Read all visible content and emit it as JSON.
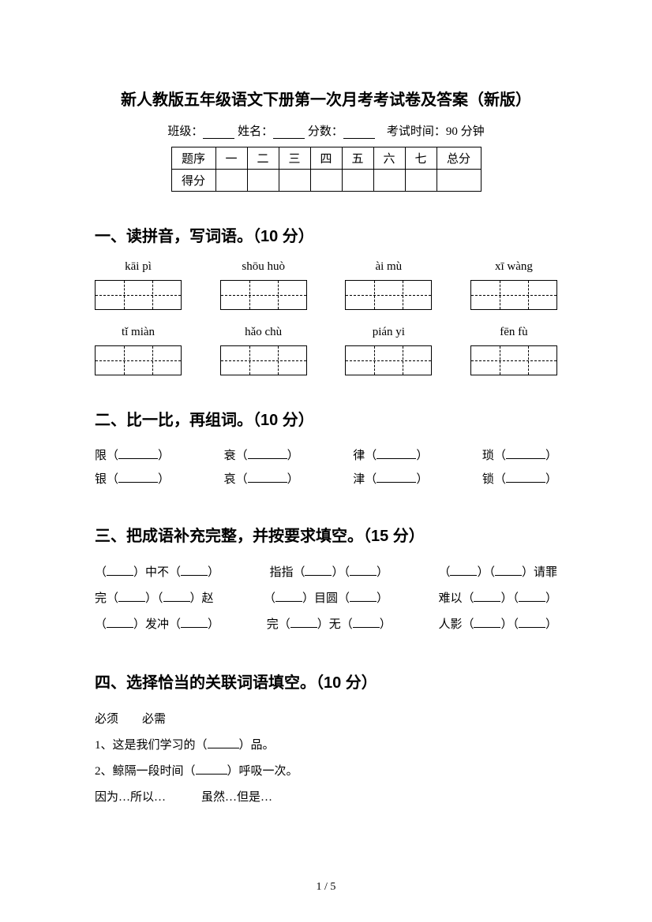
{
  "page": {
    "title": "新人教版五年级语文下册第一次月考考试卷及答案（新版）",
    "info_class": "班级：",
    "info_name": "姓名：",
    "info_score": "分数：",
    "info_time": "考试时间：90 分钟",
    "footer": "1 / 5"
  },
  "score_table": {
    "header": [
      "题序",
      "一",
      "二",
      "三",
      "四",
      "五",
      "六",
      "七",
      "总分"
    ],
    "row_label": "得分"
  },
  "q1": {
    "title": "一、读拼音，写词语。（10 分）",
    "row1": [
      "kāi  pì",
      "shōu huò",
      "ài mù",
      "xī wàng"
    ],
    "row2": [
      "tǐ miàn",
      "hǎo chù",
      "pián yi",
      "fēn fù"
    ]
  },
  "q2": {
    "title": "二、比一比，再组词。（10 分）",
    "pairs_row1": [
      "限",
      "衰",
      "律",
      "琐"
    ],
    "pairs_row2": [
      "银",
      "哀",
      "津",
      "锁"
    ]
  },
  "q3": {
    "title": "三、把成语补充完整，并按要求填空。（15 分）",
    "items": [
      [
        "（____）中不（____）",
        "指指（____）（____）",
        "（____）（____）请罪"
      ],
      [
        "完（____）（____）赵",
        "（____）目圆（____）",
        "难以（____）（____）"
      ],
      [
        "（____）发冲（____）",
        "完（____）无（____）",
        "人影（____）（____）"
      ]
    ]
  },
  "q4": {
    "title": "四、选择恰当的关联词语填空。（10 分）",
    "pair1": "必须　　必需",
    "line1a": "1、这是我们学习的（",
    "line1b": "）品。",
    "line2a": "2、鲸隔一段时间（",
    "line2b": "）呼吸一次。",
    "pair2": "因为…所以…　　　虽然…但是…"
  }
}
